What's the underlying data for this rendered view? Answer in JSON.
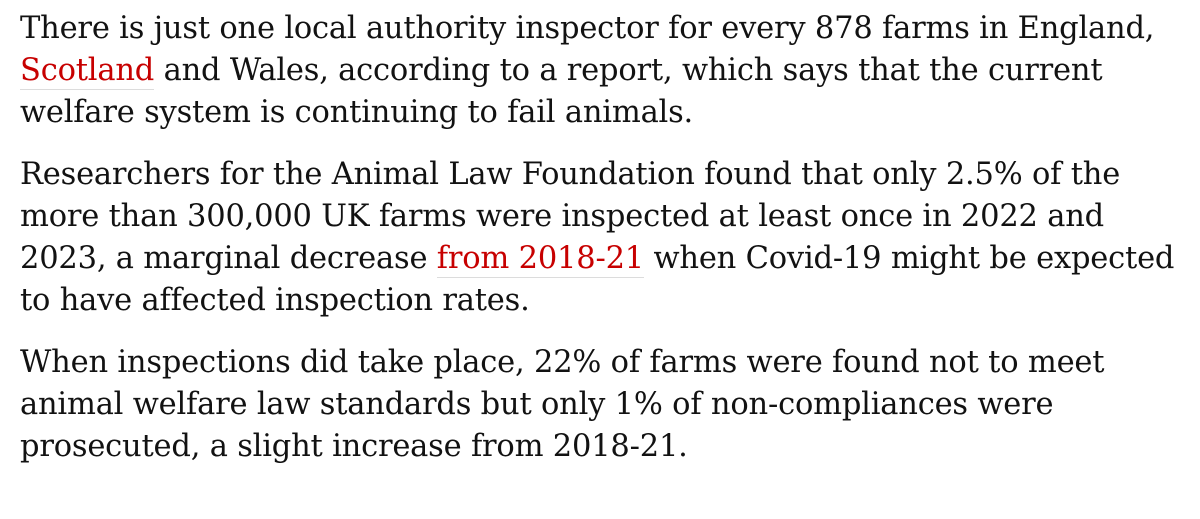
{
  "article": {
    "p1": {
      "before_link": "There is just one local authority inspector for every 878 farms in England, ",
      "link": "Scotland",
      "after_link": " and Wales, according to a report, which says that the current welfare system is continuing to fail animals."
    },
    "p2": {
      "before_link": "Researchers for the Animal Law Foundation found that only 2.5% of the more than 300,000 UK farms were inspected at least once in 2022 and 2023, a marginal decrease ",
      "link": "from 2018-21",
      "after_link": " when Covid-19 might be expected to have affected inspection rates."
    },
    "p3": {
      "text": "When inspections did take place, 22% of farms were found not to meet animal welfare law standards but only 1% of non-compliances were prosecuted, a slight increase from 2018-21."
    }
  },
  "colors": {
    "text": "#121212",
    "link": "#c70000",
    "link_underline": "#dcdcdc",
    "background": "#ffffff"
  }
}
